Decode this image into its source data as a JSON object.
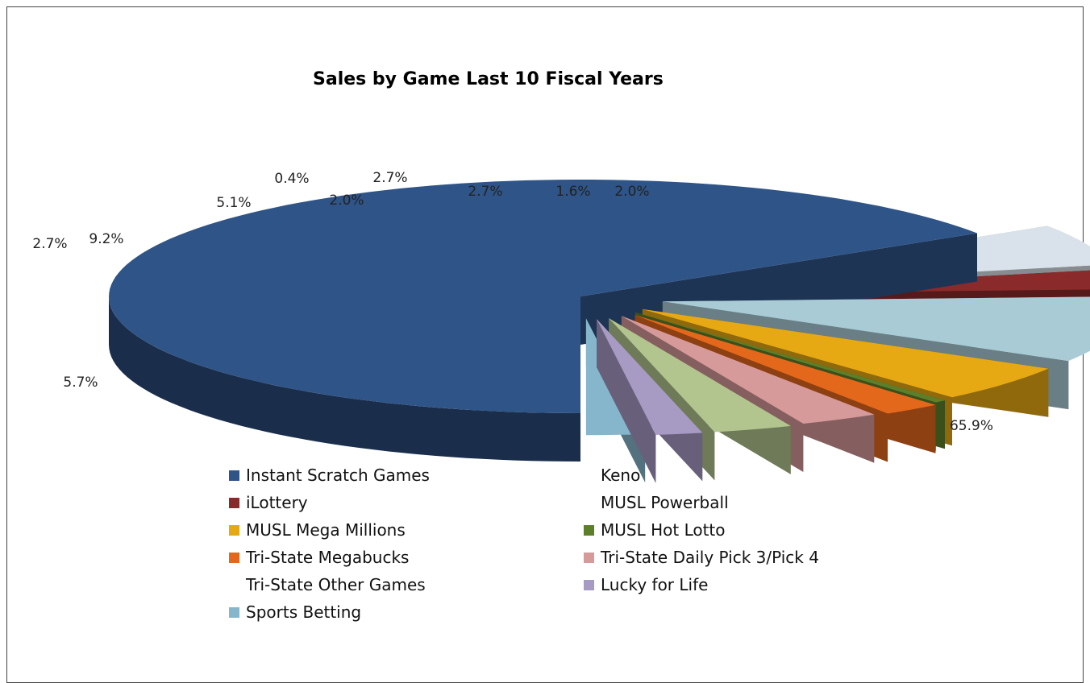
{
  "chart_data": {
    "type": "pie",
    "title": "Sales by Game Last 10 Fiscal Years",
    "slices": [
      {
        "label": "Instant Scratch Games",
        "value": 65.9,
        "value_label": "65.9%",
        "color": "#2F5488"
      },
      {
        "label": "Keno",
        "value": 5.7,
        "value_label": "5.7%",
        "color": "#D9E2EA"
      },
      {
        "label": "iLottery",
        "value": 2.7,
        "value_label": "2.7%",
        "color": "#8B2A2A"
      },
      {
        "label": "MUSL Powerball",
        "value": 9.2,
        "value_label": "9.2%",
        "color": "#A9CBD6"
      },
      {
        "label": "MUSL Mega Millions",
        "value": 5.1,
        "value_label": "5.1%",
        "color": "#E6A914"
      },
      {
        "label": "MUSL Hot Lotto",
        "value": 0.4,
        "value_label": "0.4%",
        "color": "#5E7F2A"
      },
      {
        "label": "Tri-State Megabucks",
        "value": 2.0,
        "value_label": "2.0%",
        "color": "#E3681C"
      },
      {
        "label": "Tri-State Daily Pick 3/Pick 4",
        "value": 2.7,
        "value_label": "2.7%",
        "color": "#D79A9A"
      },
      {
        "label": "Tri-State Other Games",
        "value": 2.7,
        "value_label": "2.7%",
        "color": "#B3C58F"
      },
      {
        "label": "Lucky for Life",
        "value": 1.6,
        "value_label": "1.6%",
        "color": "#A79BC4"
      },
      {
        "label": "Sports Betting",
        "value": 2.0,
        "value_label": "2.0%",
        "color": "#86B6CC"
      }
    ],
    "legend_order": [
      {
        "label": "Instant Scratch Games",
        "color": "#2F5488",
        "show_swatch": true
      },
      {
        "label": "Keno",
        "color": "#D9E2EA",
        "show_swatch": false
      },
      {
        "label": "iLottery",
        "color": "#8B2A2A",
        "show_swatch": true
      },
      {
        "label": "MUSL Powerball",
        "color": "#A9CBD6",
        "show_swatch": false
      },
      {
        "label": "MUSL Mega Millions",
        "color": "#E6A914",
        "show_swatch": true
      },
      {
        "label": "MUSL Hot Lotto",
        "color": "#5E7F2A",
        "show_swatch": true
      },
      {
        "label": "Tri-State Megabucks",
        "color": "#E3681C",
        "show_swatch": true
      },
      {
        "label": "Tri-State Daily Pick 3/Pick 4",
        "color": "#D79A9A",
        "show_swatch": true
      },
      {
        "label": "Tri-State Other Games",
        "color": "#B3C58F",
        "show_swatch": false
      },
      {
        "label": "Lucky for Life",
        "color": "#A79BC4",
        "show_swatch": true
      },
      {
        "label": "Sports Betting",
        "color": "#86B6CC",
        "show_swatch": true
      }
    ],
    "legend_placement": "bottom",
    "style": "exploded 3D pie"
  }
}
